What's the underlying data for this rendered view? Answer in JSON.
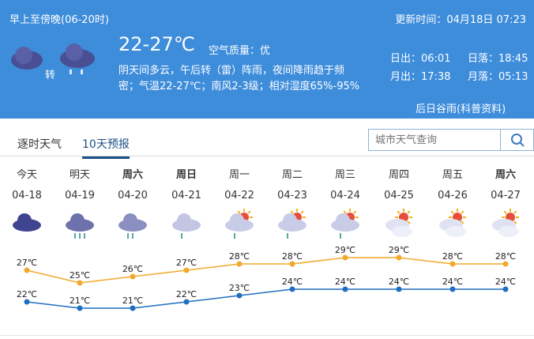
{
  "header": {
    "period": "早上至傍晚(06-20时)",
    "updated": "更新时间：04月18日 07:23",
    "temp_range": "22-27℃",
    "air_quality": "空气质量：优",
    "transition_word": "转",
    "description_line1": "阴天间多云，午后转（雷）阵雨，夜间降雨趋于频",
    "description_line2": "密；气温22-27℃；南风2-3级；相对湿度65%-95%",
    "sunrise": "日出：06:01",
    "sunset": "日落：18:45",
    "moonrise": "月出：17:38",
    "moonset": "月落：05:13",
    "link": "后日谷雨(科普资料)",
    "icons": [
      "cloudy-icon",
      "shower-icon"
    ]
  },
  "tabs": [
    {
      "label": "逐时天气",
      "active": false
    },
    {
      "label": "10天预报",
      "active": true
    }
  ],
  "search": {
    "placeholder": "城市天气查询"
  },
  "colors": {
    "header": "#3e8ddb",
    "high": "#f0a92a",
    "low": "#1f6fc0"
  },
  "days": [
    {
      "week": "今天",
      "date": "04-18",
      "icon": "overcast",
      "bold": false
    },
    {
      "week": "明天",
      "date": "04-19",
      "icon": "heavy-rain",
      "bold": false
    },
    {
      "week": "周六",
      "date": "04-20",
      "icon": "moderate-rain",
      "bold": true
    },
    {
      "week": "周日",
      "date": "04-21",
      "icon": "light-rain",
      "bold": true
    },
    {
      "week": "周一",
      "date": "04-22",
      "icon": "sun-cloud-rain",
      "bold": false
    },
    {
      "week": "周二",
      "date": "04-23",
      "icon": "sun-cloud-rain",
      "bold": false
    },
    {
      "week": "周三",
      "date": "04-24",
      "icon": "sun-cloud-rain",
      "bold": false
    },
    {
      "week": "周四",
      "date": "04-25",
      "icon": "partly-cloudy",
      "bold": false
    },
    {
      "week": "周五",
      "date": "04-26",
      "icon": "partly-cloudy",
      "bold": false
    },
    {
      "week": "周六",
      "date": "04-27",
      "icon": "partly-cloudy",
      "bold": true
    }
  ],
  "chart_data": {
    "type": "line",
    "categories": [
      "04-18",
      "04-19",
      "04-20",
      "04-21",
      "04-22",
      "04-23",
      "04-24",
      "04-25",
      "04-26",
      "04-27"
    ],
    "series": [
      {
        "values": [
          27,
          25,
          26,
          27,
          28,
          28,
          29,
          29,
          28,
          28
        ]
      },
      {
        "values": [
          22,
          21,
          21,
          22,
          23,
          24,
          24,
          24,
          24,
          24
        ]
      }
    ],
    "unit": "℃"
  }
}
